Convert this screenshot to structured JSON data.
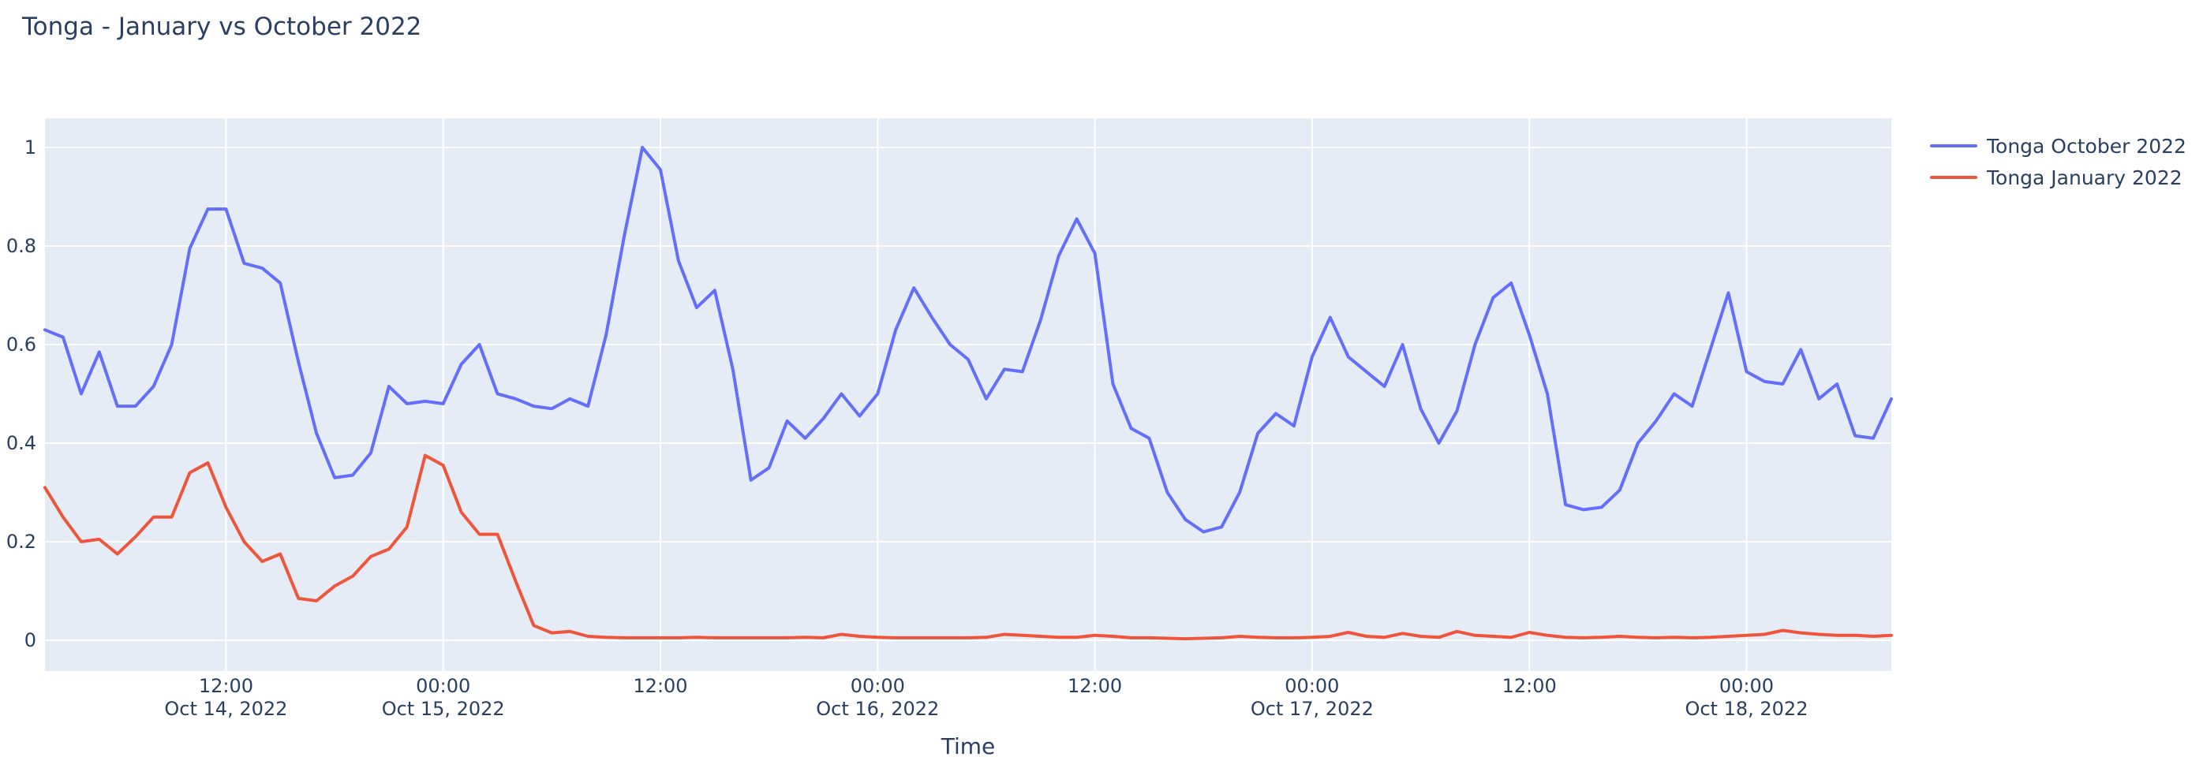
{
  "title": "Tonga - January vs October 2022",
  "colors": {
    "paper": "#ffffff",
    "plot_background": "#e5ecf6",
    "gridline": "#ffffff",
    "text": "#2a3f5f",
    "series_october": "#636efa",
    "series_january": "#ef553b"
  },
  "legend": {
    "items": [
      {
        "label": "Tonga October 2022",
        "color": "#636efa"
      },
      {
        "label": "Tonga January 2022",
        "color": "#ef553b"
      }
    ]
  },
  "chart_data": {
    "type": "line",
    "title": "Tonga - January vs October 2022",
    "xlabel": "Time",
    "ylabel": "",
    "ylim": [
      -0.06,
      1.06
    ],
    "grid": true,
    "legend_position": "right",
    "x_start": "2022-10-14 02:00",
    "x_end": "2022-10-18 08:00",
    "x_step": "1 hour",
    "n_points": 103,
    "y_ticks": [
      "0",
      "0.2",
      "0.4",
      "0.6",
      "0.8",
      "1"
    ],
    "y_tick_values": [
      0,
      0.2,
      0.4,
      0.6,
      0.8,
      1
    ],
    "x_ticks": [
      {
        "time": "12:00",
        "date": "Oct 14, 2022",
        "index": 10
      },
      {
        "time": "00:00",
        "date": "Oct 15, 2022",
        "index": 22
      },
      {
        "time": "12:00",
        "date": "",
        "index": 34
      },
      {
        "time": "00:00",
        "date": "Oct 16, 2022",
        "index": 46
      },
      {
        "time": "12:00",
        "date": "",
        "index": 58
      },
      {
        "time": "00:00",
        "date": "Oct 17, 2022",
        "index": 70
      },
      {
        "time": "12:00",
        "date": "",
        "index": 82
      },
      {
        "time": "00:00",
        "date": "Oct 18, 2022",
        "index": 94
      }
    ],
    "series": [
      {
        "name": "Tonga October 2022",
        "color": "#636efa",
        "values": [
          0.63,
          0.615,
          0.5,
          0.585,
          0.475,
          0.475,
          0.515,
          0.6,
          0.795,
          0.875,
          0.875,
          0.765,
          0.755,
          0.725,
          0.565,
          0.42,
          0.33,
          0.335,
          0.38,
          0.515,
          0.48,
          0.485,
          0.48,
          0.56,
          0.6,
          0.5,
          0.49,
          0.475,
          0.47,
          0.49,
          0.475,
          0.62,
          0.82,
          1.0,
          0.955,
          0.77,
          0.675,
          0.71,
          0.55,
          0.325,
          0.35,
          0.445,
          0.41,
          0.45,
          0.5,
          0.455,
          0.5,
          0.63,
          0.715,
          0.655,
          0.6,
          0.57,
          0.49,
          0.55,
          0.545,
          0.65,
          0.78,
          0.855,
          0.785,
          0.52,
          0.43,
          0.41,
          0.3,
          0.245,
          0.22,
          0.23,
          0.3,
          0.42,
          0.46,
          0.435,
          0.575,
          0.655,
          0.575,
          0.545,
          0.515,
          0.6,
          0.47,
          0.4,
          0.465,
          0.6,
          0.695,
          0.725,
          0.62,
          0.5,
          0.275,
          0.265,
          0.27,
          0.305,
          0.4,
          0.445,
          0.5,
          0.475,
          0.59,
          0.705,
          0.545,
          0.525,
          0.52,
          0.59,
          0.49,
          0.52,
          0.415,
          0.41,
          0.49
        ]
      },
      {
        "name": "Tonga January 2022",
        "color": "#ef553b",
        "values": [
          0.31,
          0.25,
          0.2,
          0.205,
          0.175,
          0.21,
          0.25,
          0.25,
          0.34,
          0.36,
          0.27,
          0.2,
          0.16,
          0.175,
          0.085,
          0.08,
          0.11,
          0.13,
          0.17,
          0.185,
          0.23,
          0.375,
          0.355,
          0.26,
          0.215,
          0.215,
          0.12,
          0.03,
          0.015,
          0.018,
          0.008,
          0.006,
          0.005,
          0.005,
          0.005,
          0.005,
          0.006,
          0.005,
          0.005,
          0.005,
          0.005,
          0.005,
          0.006,
          0.005,
          0.012,
          0.008,
          0.006,
          0.005,
          0.005,
          0.005,
          0.005,
          0.005,
          0.006,
          0.012,
          0.01,
          0.008,
          0.006,
          0.006,
          0.01,
          0.008,
          0.005,
          0.005,
          0.004,
          0.003,
          0.004,
          0.005,
          0.008,
          0.006,
          0.005,
          0.005,
          0.006,
          0.008,
          0.016,
          0.008,
          0.006,
          0.014,
          0.008,
          0.006,
          0.018,
          0.01,
          0.008,
          0.006,
          0.016,
          0.01,
          0.006,
          0.005,
          0.006,
          0.008,
          0.006,
          0.005,
          0.006,
          0.005,
          0.006,
          0.008,
          0.01,
          0.012,
          0.02,
          0.015,
          0.012,
          0.01,
          0.01,
          0.008,
          0.01
        ]
      }
    ]
  }
}
